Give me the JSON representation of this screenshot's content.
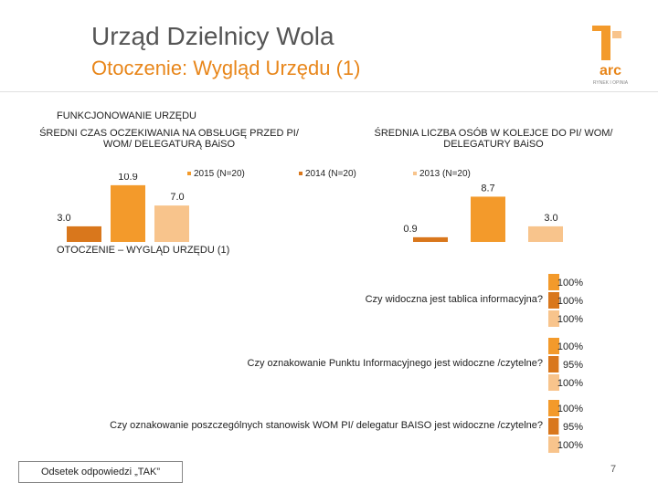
{
  "header": {
    "title": "Urząd Dzielnicy Wola",
    "subtitle": "Otoczenie: Wygląd Urzędu (1)",
    "logo_text": "arc",
    "logo_tagline": "RYNEK I OPINIA"
  },
  "colors": {
    "accent": "#e8861a",
    "s2015": "#f39a2b",
    "s2014": "#d9771c",
    "s2013": "#f8c48c"
  },
  "section1": {
    "heading": "FUNKCJONOWANIE URZĘDU"
  },
  "section2": {
    "heading": "OTOCZENIE – WYGLĄD URZĘDU (1)"
  },
  "footer": {
    "note": "Odsetek odpowiedzi „TAK”",
    "page": "7"
  },
  "chart_data": [
    {
      "type": "bar",
      "title": "ŚREDNI CZAS OCZEKIWANIA NA OBSŁUGĘ PRZED PI/ WOM/ DELEGATURĄ BAiSO",
      "series": [
        {
          "name": "2014 (N=20)",
          "values": [
            3.0
          ],
          "labels": [
            "3.0"
          ]
        },
        {
          "name": "2015 (N=20)",
          "values": [
            10.9
          ],
          "labels": [
            "10.9"
          ]
        },
        {
          "name": "2013 (N=20)",
          "values": [
            7.0
          ],
          "labels": [
            "7.0"
          ]
        }
      ]
    },
    {
      "type": "bar",
      "title": "ŚREDNIA LICZBA OSÓB W KOLEJCE DO PI/ WOM/ DELEGATURY BAiSO",
      "series": [
        {
          "name": "2014 (N=20)",
          "values": [
            0.9
          ],
          "labels": [
            "0.9"
          ]
        },
        {
          "name": "2015 (N=20)",
          "values": [
            8.7
          ],
          "labels": [
            "8.7"
          ]
        },
        {
          "name": "2013 (N=20)",
          "values": [
            3.0
          ],
          "labels": [
            "3.0"
          ]
        }
      ]
    },
    {
      "type": "bar",
      "orientation": "horizontal",
      "categories": [
        "Czy widoczna jest tablica informacyjna?",
        "Czy oznakowanie Punktu Informacyjnego jest widoczne /czytelne?",
        "Czy oznakowanie poszczególnych stanowisk WOM PI/ delegatur BAISO jest widoczne /czytelne?"
      ],
      "series": [
        {
          "name": "2015 (N=20)",
          "values": [
            100,
            100,
            100
          ],
          "labels": [
            "100%",
            "100%",
            "100%"
          ]
        },
        {
          "name": "2014 (N=20)",
          "values": [
            100,
            95,
            95
          ],
          "labels": [
            "100%",
            "95%",
            "95%"
          ]
        },
        {
          "name": "2013 (N=20)",
          "values": [
            100,
            100,
            100
          ],
          "labels": [
            "100%",
            "100%",
            "100%"
          ]
        }
      ],
      "xlim": [
        0,
        100
      ]
    }
  ],
  "legend": [
    "2015 (N=20)",
    "2014 (N=20)",
    "2013 (N=20)"
  ]
}
